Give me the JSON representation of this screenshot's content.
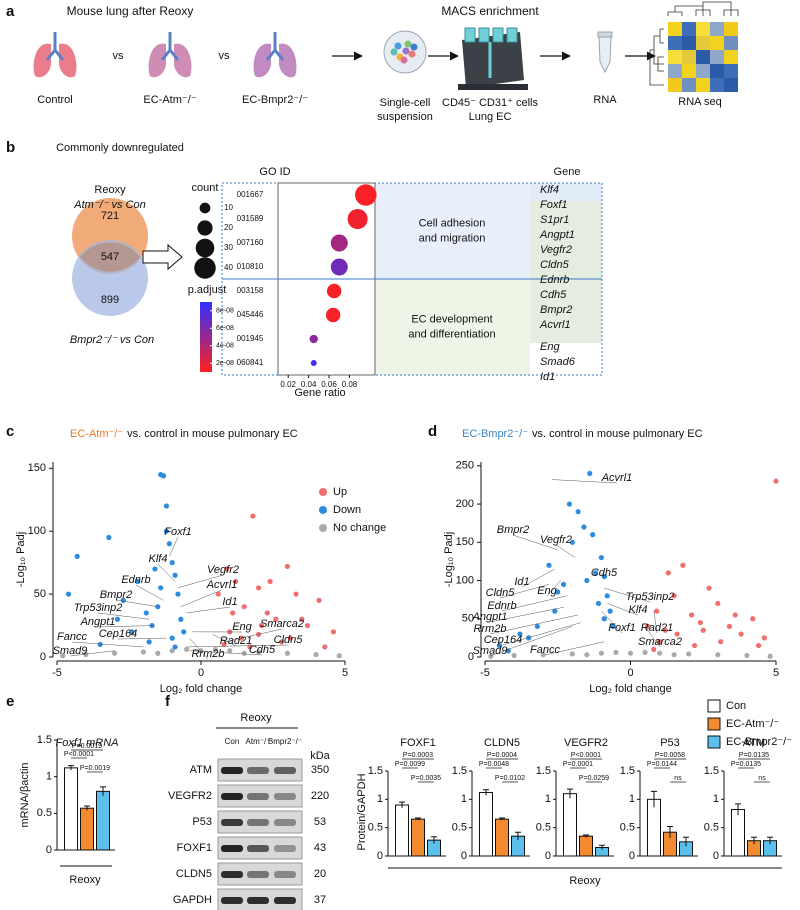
{
  "panel_labels": [
    "a",
    "b",
    "c",
    "d",
    "e",
    "f"
  ],
  "workflow": {
    "title": "Mouse lung after Reoxy",
    "versus": "vs",
    "groups": [
      {
        "name": "Control",
        "color": "#111111"
      },
      {
        "name": "EC-Atm⁻/⁻",
        "color": "#e8772e"
      },
      {
        "name": "EC-Bmpr2⁻/⁻",
        "color": "#3a86c8"
      }
    ],
    "enrichment_title": "MACS enrichment",
    "suspension": [
      "Single-cell",
      "suspension"
    ],
    "cells": [
      "CD45⁻ CD31⁺ cells",
      "Lung EC"
    ],
    "rna": "RNA",
    "rna_seq": "RNA seq"
  },
  "venn": {
    "heading": "Commonly downregulated",
    "title": "Reoxy",
    "sets": [
      {
        "name": "Atm⁻/⁻ vs Con",
        "color": "#efa26a",
        "only": 721
      },
      {
        "name": "Bmpr2⁻/⁻ vs Con",
        "color": "#a3b7e3",
        "only": 899
      }
    ],
    "overlap": 547
  },
  "chart_data": [
    {
      "type": "dot",
      "y_label": "GO ID",
      "x_label": "Gene ratio",
      "categories": [
        "001667",
        "031589",
        "007160",
        "010810",
        "003158",
        "045446",
        "001945",
        "060841"
      ],
      "values": [
        0.096,
        0.088,
        0.07,
        0.07,
        0.065,
        0.064,
        0.045,
        0.045
      ],
      "sizes": [
        40,
        35,
        25,
        25,
        18,
        18,
        6,
        3
      ],
      "p_adjust": [
        1.2e-08,
        1.5e-08,
        4.5e-08,
        6.5e-08,
        1.3e-08,
        1.3e-08,
        5.5e-08,
        8.5e-08
      ],
      "xlim": [
        0.01,
        0.105
      ],
      "xticks": [
        0.02,
        0.04,
        0.06,
        0.08
      ],
      "size_legend": {
        "title": "count",
        "values": [
          10,
          20,
          30,
          40
        ]
      },
      "color_legend": {
        "title": "p.adjust",
        "lim": [
          1e-08,
          9e-08
        ],
        "low_color": "#ff2020",
        "high_color": "#3030ff",
        "ticks": [
          {
            "value": 8e-08,
            "label": "8e-08"
          },
          {
            "value": 6e-08,
            "label": "6e-08"
          },
          {
            "value": 4e-08,
            "label": "4e-08"
          },
          {
            "value": 2e-08,
            "label": "2e-08"
          }
        ]
      },
      "groups": [
        {
          "name": [
            "Cell adhesion",
            "and migration"
          ],
          "color": "#2f6fb5"
        },
        {
          "name": [
            "EC development",
            "and differentiation"
          ],
          "color": "#5a9a3a"
        }
      ],
      "gene_title": "Gene",
      "genes": [
        {
          "name": "Klf4",
          "color": "#2f7fc1"
        },
        {
          "name": "Foxf1",
          "color": "#2e7d32"
        },
        {
          "name": "S1pr1",
          "color": "#2e7d32"
        },
        {
          "name": "Angpt1",
          "color": "#2e7d32"
        },
        {
          "name": "Vegfr2",
          "color": "#2e7d32"
        },
        {
          "name": "Cldn5",
          "color": "#2e7d32"
        },
        {
          "name": "Ednrb",
          "color": "#2e7d32"
        },
        {
          "name": "Cdh5",
          "color": "#2e7d32"
        },
        {
          "name": "Bmpr2",
          "color": "#2e7d32"
        },
        {
          "name": "Acvrl1",
          "color": "#2e7d32"
        },
        {
          "name": "Eng",
          "color": "#5a9a3a"
        },
        {
          "name": "Smad6",
          "color": "#5a9a3a"
        },
        {
          "name": "Id1",
          "color": "#5a9a3a"
        }
      ]
    },
    {
      "type": "volcano",
      "title": {
        "highlight": "EC-Atm⁻/⁻",
        "rest": "vs. control in mouse pulmonary EC",
        "color": "#e8772e"
      },
      "x_label": "Log₂ fold change",
      "y_label": "-Log₁₀ Padj",
      "xlim": [
        -5,
        5
      ],
      "xticks": [
        -5,
        0,
        5
      ],
      "ylim": [
        0,
        155
      ],
      "yticks": [
        0,
        50,
        100,
        150
      ],
      "legend": "top-right",
      "series": [
        {
          "name": "Up",
          "color": "#ef6f6f",
          "x": [
            0.6,
            0.9,
            1.2,
            1.5,
            1.8,
            2.0,
            2.3,
            2.6,
            3.0,
            3.3,
            3.7,
            4.1,
            4.6,
            1.0,
            1.4,
            2.1,
            2.8,
            3.5,
            0.8,
            1.7,
            2.4,
            3.1,
            4.3,
            1.1,
            2.0
          ],
          "values": [
            50,
            70,
            60,
            40,
            112,
            55,
            35,
            30,
            72,
            50,
            25,
            45,
            20,
            20,
            15,
            25,
            12,
            30,
            10,
            8,
            60,
            15,
            8,
            35,
            18
          ]
        },
        {
          "name": "Down",
          "color": "#2a8be0",
          "x": [
            -4.6,
            -4.3,
            -3.2,
            -2.7,
            -2.2,
            -1.9,
            -1.6,
            -1.5,
            -1.4,
            -1.3,
            -1.2,
            -1.1,
            -1.0,
            -0.9,
            -0.8,
            -0.7,
            -1.2,
            -1.7,
            -2.4,
            -3.5,
            -1.0,
            -0.6,
            -1.4,
            -1.8,
            -2.9,
            -0.9
          ],
          "values": [
            50,
            80,
            95,
            45,
            60,
            35,
            70,
            40,
            145,
            144,
            100,
            90,
            75,
            65,
            50,
            30,
            120,
            25,
            20,
            10,
            15,
            20,
            55,
            12,
            30,
            8
          ]
        },
        {
          "name": "No change",
          "color": "#aaaaaa",
          "x": [
            -4.8,
            -4.0,
            -3.0,
            -2.0,
            -1.0,
            -0.5,
            0,
            0.5,
            1.0,
            2.0,
            3.0,
            4.0,
            4.8,
            -1.5,
            1.5
          ],
          "values": [
            1,
            2,
            3,
            4,
            5,
            6,
            5,
            6,
            5,
            4,
            3,
            2,
            1,
            3,
            3
          ]
        }
      ],
      "labeled_genes": {
        "names": [
          "Foxf1",
          "Klf4",
          "Vegfr2",
          "Acvrl1",
          "Ednrb",
          "Bmpr2",
          "Id1",
          "Trp53inp2",
          "Angpt1",
          "Eng",
          "Rad21",
          "Rrm2b",
          "Smarca2",
          "Cldn5",
          "Cep164",
          "Fancc",
          "Smad9",
          "Cdh5"
        ],
        "x": [
          -1.1,
          -0.9,
          -0.8,
          -0.7,
          -1.3,
          -1.5,
          -0.5,
          -1.8,
          -1.6,
          -0.3,
          0.4,
          -0.4,
          0.8,
          -0.5,
          -1.2,
          -2.0,
          -3.0,
          -0.4
        ],
        "y": [
          80,
          60,
          55,
          40,
          45,
          40,
          35,
          30,
          25,
          20,
          18,
          15,
          12,
          8,
          15,
          8,
          5,
          5
        ]
      }
    },
    {
      "type": "volcano",
      "title": {
        "highlight": "EC-Bmpr2⁻/⁻",
        "rest": "vs. control in mouse pulmonary EC",
        "color": "#3a86c8"
      },
      "x_label": "Log₂ fold change",
      "y_label": "-Log₁₀ Padj",
      "xlim": [
        -5,
        5
      ],
      "xticks": [
        -5,
        0,
        5
      ],
      "ylim": [
        0,
        255
      ],
      "yticks": [
        0,
        50,
        100,
        150,
        200,
        250
      ],
      "series": [
        {
          "color": "#ef6f6f",
          "x": [
            0.6,
            0.9,
            1.2,
            1.5,
            1.8,
            2.1,
            2.4,
            2.7,
            3.0,
            3.4,
            3.8,
            4.2,
            4.6,
            5.0,
            1.0,
            1.6,
            2.2,
            3.1,
            0.8,
            1.3,
            2.5,
            3.6,
            4.4
          ],
          "values": [
            40,
            60,
            35,
            80,
            120,
            55,
            45,
            90,
            70,
            40,
            30,
            50,
            25,
            230,
            20,
            30,
            15,
            20,
            10,
            110,
            35,
            55,
            15
          ]
        },
        {
          "color": "#2a8be0",
          "x": [
            -4.5,
            -3.8,
            -3.2,
            -2.8,
            -2.5,
            -2.1,
            -1.8,
            -1.6,
            -1.4,
            -1.2,
            -1.0,
            -0.9,
            -0.8,
            -0.7,
            -2.0,
            -1.5,
            -1.1,
            -3.5,
            -0.6,
            -2.3,
            -1.3,
            -0.9,
            -4.2,
            -2.6
          ],
          "values": [
            15,
            30,
            40,
            120,
            85,
            200,
            190,
            170,
            240,
            110,
            130,
            105,
            80,
            60,
            150,
            100,
            70,
            25,
            40,
            95,
            160,
            50,
            8,
            60
          ]
        },
        {
          "color": "#aaaaaa",
          "x": [
            -4.8,
            -4.0,
            -3.0,
            -2.0,
            -1.0,
            -0.5,
            0,
            0.5,
            1.0,
            2.0,
            3.0,
            4.0,
            4.8,
            -1.5,
            1.5
          ],
          "values": [
            1,
            2,
            3,
            4,
            5,
            6,
            5,
            6,
            5,
            4,
            3,
            2,
            1,
            3,
            3
          ]
        }
      ],
      "labeled_genes": {
        "names": [
          "Acvrl1",
          "Bmpr2",
          "Vegfr2",
          "Cdh5",
          "Id1",
          "Cldn5",
          "Eng",
          "Ednrb",
          "Trp53inp2",
          "Klf4",
          "Angpt1",
          "Rrm2b",
          "Foxf1",
          "Rad21",
          "Cep164",
          "Smarca2",
          "Smad9",
          "Fancc"
        ],
        "x": [
          -2.7,
          -2.5,
          -1.9,
          -1.0,
          -2.6,
          -2.8,
          -2.4,
          -2.2,
          -0.9,
          -0.8,
          -2.3,
          -1.8,
          -1.0,
          0.8,
          -1.7,
          0.5,
          -2.0,
          -0.9
        ],
        "y": [
          232,
          140,
          130,
          110,
          115,
          95,
          100,
          80,
          90,
          70,
          65,
          55,
          60,
          60,
          45,
          40,
          40,
          20
        ]
      }
    },
    {
      "type": "bar",
      "title": "Foxf1 mRNA",
      "y_label": "mRNA/βactin",
      "x_label": "Reoxy",
      "values": [
        1.12,
        0.57,
        0.8
      ],
      "errors": [
        0.03,
        0.03,
        0.06
      ],
      "colors": [
        "#ffffff",
        "#f28a30",
        "#5bc0eb"
      ],
      "ylim": [
        0,
        1.5
      ],
      "yticks": [
        0,
        0.5,
        1,
        1.5
      ],
      "p_values": [
        "P=0.0019",
        "P<0.0001",
        "P=0.0019"
      ]
    },
    {
      "type": "bar",
      "title": "FOXF1",
      "values": [
        0.9,
        0.65,
        0.28
      ],
      "errors": [
        0.05,
        0.02,
        0.06
      ],
      "colors": [
        "#ffffff",
        "#f28a30",
        "#5bc0eb"
      ],
      "ylim": [
        0,
        1.5
      ],
      "yticks": [
        0,
        0.5,
        1,
        1.5
      ],
      "p_values": [
        "P=0.0003",
        "P=0.0099",
        "P=0.0035"
      ]
    },
    {
      "type": "bar",
      "title": "CLDN5",
      "values": [
        1.12,
        0.65,
        0.35
      ],
      "errors": [
        0.05,
        0.02,
        0.07
      ],
      "colors": [
        "#ffffff",
        "#f28a30",
        "#5bc0eb"
      ],
      "ylim": [
        0,
        1.5
      ],
      "yticks": [
        0,
        0.5,
        1,
        1.5
      ],
      "p_values": [
        "P=0.0004",
        "P=0.0048",
        "P=0.0102"
      ]
    },
    {
      "type": "bar",
      "title": "VEGFR2",
      "values": [
        1.1,
        0.35,
        0.15
      ],
      "errors": [
        0.08,
        0.02,
        0.04
      ],
      "colors": [
        "#ffffff",
        "#f28a30",
        "#5bc0eb"
      ],
      "ylim": [
        0,
        1.5
      ],
      "yticks": [
        0,
        0.5,
        1,
        1.5
      ],
      "p_values": [
        "P<0.0001",
        "P=0.0001",
        "P=0.0259"
      ]
    },
    {
      "type": "bar",
      "title": "P53",
      "values": [
        1.0,
        0.42,
        0.25
      ],
      "errors": [
        0.14,
        0.1,
        0.08
      ],
      "colors": [
        "#ffffff",
        "#f28a30",
        "#5bc0eb"
      ],
      "ylim": [
        0,
        1.5
      ],
      "yticks": [
        0,
        0.5,
        1,
        1.5
      ],
      "p_values": [
        "P=0.0058",
        "P=0.0144",
        "ns"
      ]
    },
    {
      "type": "bar",
      "title": "ATM",
      "values": [
        0.82,
        0.27,
        0.27
      ],
      "errors": [
        0.1,
        0.06,
        0.06
      ],
      "colors": [
        "#ffffff",
        "#f28a30",
        "#5bc0eb"
      ],
      "ylim": [
        0,
        1.5
      ],
      "yticks": [
        0,
        0.5,
        1,
        1.5
      ],
      "p_values": [
        "P=0.0135",
        "P=0.0135",
        "ns"
      ]
    }
  ],
  "blot": {
    "title": "Reoxy",
    "lanes": [
      "Con",
      "Atm⁻/⁻",
      "Bmpr2⁻/⁻"
    ],
    "unit": "kDa",
    "proteins": [
      "ATM",
      "VEGFR2",
      "P53",
      "FOXF1",
      "CLDN5",
      "GAPDH"
    ],
    "kda": [
      350,
      220,
      53,
      43,
      20,
      37
    ]
  },
  "quantification": {
    "y_label": "Protein/GAPDH",
    "x_label": "Reoxy",
    "legend": {
      "names": [
        "Con",
        "EC-Atm⁻/⁻",
        "EC-Bmpr2⁻/⁻"
      ],
      "colors": [
        "#ffffff",
        "#f28a30",
        "#5bc0eb"
      ]
    }
  }
}
